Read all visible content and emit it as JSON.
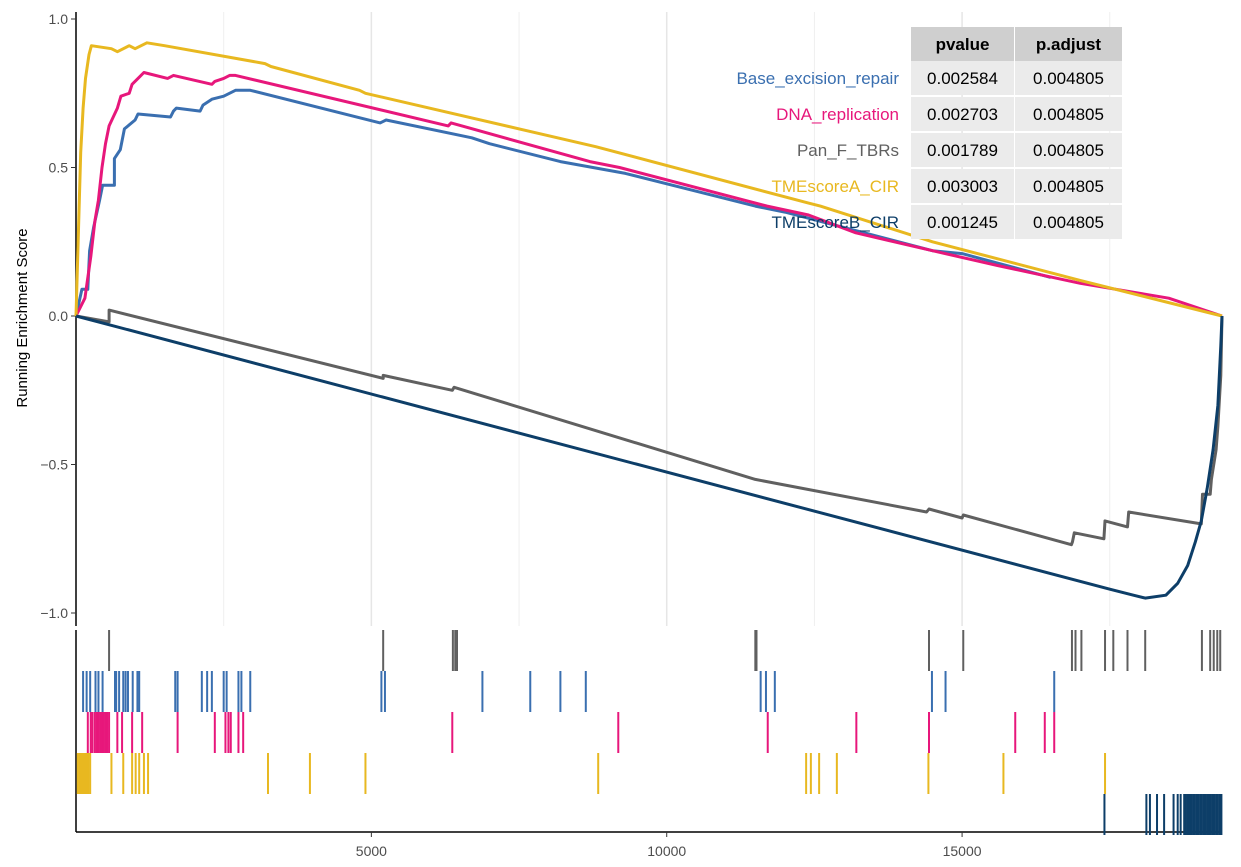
{
  "chart_data": {
    "type": "line",
    "title": "",
    "xlabel": "",
    "ylabel": "Running Enrichment Score",
    "xlim": [
      0,
      19400
    ],
    "ylim": [
      -1.03,
      1.0
    ],
    "x_ticks": [
      5000,
      10000,
      15000
    ],
    "x_tick_labels": [
      "5000",
      "10000",
      "15000"
    ],
    "y_ticks": [
      1.0,
      0.5,
      0.0,
      -0.5,
      -1.0
    ],
    "y_tick_labels": [
      "1.0",
      "0.5",
      "0.0",
      "−0.5",
      "−1.0"
    ],
    "grid": true,
    "legend": "table top-right",
    "table": {
      "headers": [
        "pvalue",
        "p.adjust"
      ],
      "rows": [
        {
          "name": "Base_excision_repair",
          "pvalue": "0.002584",
          "padjust": "0.004805"
        },
        {
          "name": "DNA_replication",
          "pvalue": "0.002703",
          "padjust": "0.004805"
        },
        {
          "name": "Pan_F_TBRs",
          "pvalue": "0.001789",
          "padjust": "0.004805"
        },
        {
          "name": "TMEscoreA_CIR",
          "pvalue": "0.003003",
          "padjust": "0.004805"
        },
        {
          "name": "TMEscoreB_CIR",
          "pvalue": "0.001245",
          "padjust": "0.004805"
        }
      ]
    },
    "series": [
      {
        "name": "Base_excision_repair",
        "color": "#3a6fb0",
        "points": [
          [
            0,
            0
          ],
          [
            100,
            0.09
          ],
          [
            200,
            0.09
          ],
          [
            230,
            0.22
          ],
          [
            300,
            0.3
          ],
          [
            400,
            0.39
          ],
          [
            450,
            0.44
          ],
          [
            650,
            0.44
          ],
          [
            650,
            0.53
          ],
          [
            750,
            0.56
          ],
          [
            820,
            0.63
          ],
          [
            1000,
            0.66
          ],
          [
            1050,
            0.68
          ],
          [
            1600,
            0.67
          ],
          [
            1650,
            0.69
          ],
          [
            1700,
            0.7
          ],
          [
            2100,
            0.69
          ],
          [
            2150,
            0.71
          ],
          [
            2300,
            0.73
          ],
          [
            2500,
            0.74
          ],
          [
            2700,
            0.76
          ],
          [
            2950,
            0.76
          ],
          [
            5150,
            0.65
          ],
          [
            5250,
            0.66
          ],
          [
            6700,
            0.6
          ],
          [
            7000,
            0.58
          ],
          [
            8200,
            0.52
          ],
          [
            9300,
            0.48
          ],
          [
            11500,
            0.37
          ],
          [
            12000,
            0.35
          ],
          [
            14500,
            0.22
          ],
          [
            15000,
            0.21
          ],
          [
            16500,
            0.13
          ]
        ]
      },
      {
        "name": "DNA_replication",
        "color": "#e7177b",
        "points": [
          [
            0,
            0
          ],
          [
            150,
            0.06
          ],
          [
            250,
            0.2
          ],
          [
            320,
            0.32
          ],
          [
            380,
            0.39
          ],
          [
            440,
            0.5
          ],
          [
            500,
            0.58
          ],
          [
            560,
            0.64
          ],
          [
            700,
            0.7
          ],
          [
            760,
            0.74
          ],
          [
            900,
            0.75
          ],
          [
            950,
            0.78
          ],
          [
            1050,
            0.8
          ],
          [
            1150,
            0.82
          ],
          [
            1550,
            0.8
          ],
          [
            1650,
            0.81
          ],
          [
            2300,
            0.78
          ],
          [
            2350,
            0.79
          ],
          [
            2500,
            0.8
          ],
          [
            2600,
            0.81
          ],
          [
            2700,
            0.81
          ],
          [
            6300,
            0.64
          ],
          [
            6350,
            0.65
          ],
          [
            8700,
            0.52
          ],
          [
            9200,
            0.5
          ],
          [
            11700,
            0.37
          ],
          [
            12400,
            0.34
          ],
          [
            13200,
            0.28
          ],
          [
            14500,
            0.22
          ],
          [
            15600,
            0.17
          ],
          [
            17000,
            0.11
          ],
          [
            18500,
            0.06
          ],
          [
            19400,
            0.0
          ]
        ]
      },
      {
        "name": "Pan_F_TBRs",
        "color": "#606060",
        "points": [
          [
            0,
            0
          ],
          [
            560,
            -0.02
          ],
          [
            560,
            0.02
          ],
          [
            5200,
            -0.21
          ],
          [
            5200,
            -0.2
          ],
          [
            6370,
            -0.25
          ],
          [
            6400,
            -0.24
          ],
          [
            11500,
            -0.55
          ],
          [
            14400,
            -0.66
          ],
          [
            14440,
            -0.65
          ],
          [
            15000,
            -0.68
          ],
          [
            15020,
            -0.67
          ],
          [
            16850,
            -0.77
          ],
          [
            16870,
            -0.76
          ],
          [
            16900,
            -0.73
          ],
          [
            17400,
            -0.75
          ],
          [
            17420,
            -0.69
          ],
          [
            17800,
            -0.71
          ],
          [
            17820,
            -0.66
          ],
          [
            19050,
            -0.7
          ],
          [
            19070,
            -0.6
          ],
          [
            19200,
            -0.6
          ],
          [
            19220,
            -0.55
          ],
          [
            19300,
            -0.45
          ],
          [
            19330,
            -0.37
          ],
          [
            19380,
            -0.2
          ],
          [
            19400,
            0.0
          ]
        ]
      },
      {
        "name": "TMEscoreA_CIR",
        "color": "#e8b820",
        "points": [
          [
            0,
            0
          ],
          [
            80,
            0.55
          ],
          [
            120,
            0.7
          ],
          [
            160,
            0.8
          ],
          [
            220,
            0.88
          ],
          [
            260,
            0.91
          ],
          [
            600,
            0.9
          ],
          [
            700,
            0.89
          ],
          [
            900,
            0.91
          ],
          [
            1000,
            0.9
          ],
          [
            1200,
            0.92
          ],
          [
            1500,
            0.91
          ],
          [
            3200,
            0.85
          ],
          [
            3300,
            0.84
          ],
          [
            4800,
            0.76
          ],
          [
            4900,
            0.75
          ],
          [
            8800,
            0.57
          ],
          [
            12400,
            0.38
          ],
          [
            12600,
            0.37
          ],
          [
            14500,
            0.25
          ],
          [
            17000,
            0.12
          ],
          [
            19400,
            0.0
          ]
        ]
      },
      {
        "name": "TMEscoreB_CIR",
        "color": "#0d3e68",
        "points": [
          [
            0,
            0
          ],
          [
            17500,
            -0.92
          ],
          [
            17900,
            -0.94
          ],
          [
            18100,
            -0.95
          ],
          [
            18450,
            -0.94
          ],
          [
            18650,
            -0.9
          ],
          [
            18820,
            -0.84
          ],
          [
            18950,
            -0.76
          ],
          [
            19050,
            -0.69
          ],
          [
            19150,
            -0.58
          ],
          [
            19250,
            -0.45
          ],
          [
            19330,
            -0.3
          ],
          [
            19380,
            -0.1
          ],
          [
            19400,
            0.0
          ]
        ]
      }
    ],
    "hits": [
      {
        "name": "Pan_F_TBRs",
        "color": "#606060",
        "positions": [
          560,
          5200,
          6380,
          6420,
          6450,
          11500,
          11520,
          14440,
          15020,
          16860,
          16920,
          17020,
          17420,
          17560,
          17800,
          18100,
          19060,
          19200,
          19260,
          19320,
          19370
        ]
      },
      {
        "name": "Base_excision_repair",
        "color": "#3a6fb0",
        "positions": [
          120,
          180,
          240,
          330,
          380,
          450,
          660,
          680,
          730,
          800,
          840,
          880,
          960,
          1040,
          1070,
          1680,
          1720,
          2130,
          2220,
          2300,
          2500,
          2550,
          2750,
          2800,
          2950,
          5170,
          5230,
          6880,
          7690,
          8200,
          8630,
          11590,
          11680,
          11830,
          14490,
          14720,
          16560
        ]
      },
      {
        "name": "DNA_replication",
        "color": "#e7177b",
        "positions": [
          200,
          250,
          280,
          320,
          350,
          380,
          410,
          440,
          470,
          500,
          530,
          560,
          700,
          780,
          950,
          1120,
          1720,
          2350,
          2530,
          2580,
          2620,
          2750,
          2830,
          6370,
          9180,
          11710,
          13210,
          14440,
          15900,
          16400,
          16560
        ]
      },
      {
        "name": "TMEscoreA_CIR",
        "color": "#e8b820",
        "positions": [
          30,
          60,
          90,
          110,
          130,
          150,
          170,
          190,
          210,
          240,
          600,
          800,
          950,
          1010,
          1070,
          1150,
          1220,
          3250,
          3960,
          4900,
          8840,
          12360,
          12440,
          12580,
          12880,
          14430,
          15700,
          17420
        ]
      },
      {
        "name": "TMEscoreB_CIR",
        "color": "#0d3e68",
        "positions": [
          17410,
          18120,
          18180,
          18300,
          18420,
          18580,
          18650,
          18700,
          18760,
          18790,
          18820,
          18850,
          18880,
          18910,
          18940,
          18970,
          19000,
          19030,
          19060,
          19090,
          19120,
          19150,
          19180,
          19210,
          19240,
          19270,
          19300,
          19330,
          19360,
          19390
        ]
      }
    ]
  }
}
